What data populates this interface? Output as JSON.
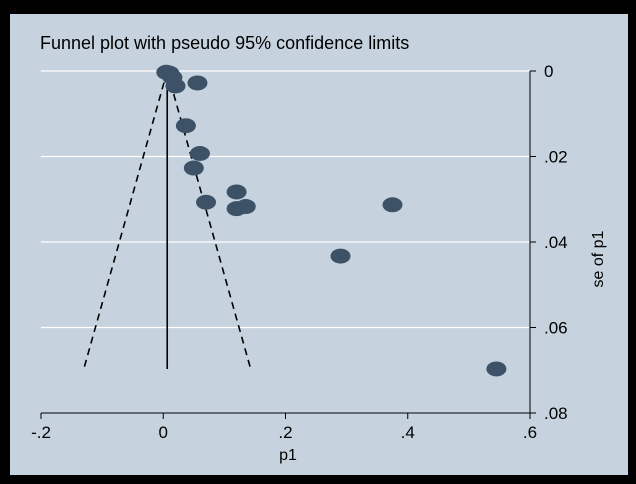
{
  "chart_data": {
    "type": "scatter",
    "title": "Funnel plot with pseudo 95% confidence limits",
    "xlabel": "p1",
    "ylabel": "se of p1",
    "xlim": [
      -0.2,
      0.6
    ],
    "ylim": [
      0,
      0.08
    ],
    "y_axis_reversed": true,
    "y_axis_position": "right",
    "grid": "horizontal",
    "x_ticks": [
      {
        "value": -0.2,
        "label": "-.2"
      },
      {
        "value": 0,
        "label": "0"
      },
      {
        "value": 0.2,
        "label": ".2"
      },
      {
        "value": 0.4,
        "label": ".4"
      },
      {
        "value": 0.6,
        "label": ".6"
      }
    ],
    "y_ticks": [
      {
        "value": 0,
        "label": "0"
      },
      {
        "value": 0.02,
        "label": ".02"
      },
      {
        "value": 0.04,
        "label": ".04"
      },
      {
        "value": 0.06,
        "label": ".06"
      },
      {
        "value": 0.08,
        "label": ".08"
      }
    ],
    "points": [
      {
        "x": 0.005,
        "y": 0.0003
      },
      {
        "x": 0.01,
        "y": 0.0005
      },
      {
        "x": 0.015,
        "y": 0.0015
      },
      {
        "x": 0.02,
        "y": 0.0035
      },
      {
        "x": 0.056,
        "y": 0.0028
      },
      {
        "x": 0.037,
        "y": 0.0128
      },
      {
        "x": 0.06,
        "y": 0.0193
      },
      {
        "x": 0.05,
        "y": 0.0227
      },
      {
        "x": 0.12,
        "y": 0.0283
      },
      {
        "x": 0.07,
        "y": 0.0307
      },
      {
        "x": 0.12,
        "y": 0.0322
      },
      {
        "x": 0.135,
        "y": 0.0317
      },
      {
        "x": 0.375,
        "y": 0.0313
      },
      {
        "x": 0.29,
        "y": 0.0433
      },
      {
        "x": 0.545,
        "y": 0.0697
      }
    ],
    "pooled_estimate": 0.0065,
    "funnel_apex_se": 0,
    "funnel_base_se": 0.0697,
    "funnel_base_x": [
      -0.13,
      0.143
    ],
    "colors": {
      "background": "#c6d3de",
      "points": "#3d5266",
      "gridline": "#ffffff",
      "frame": "#000000"
    }
  }
}
